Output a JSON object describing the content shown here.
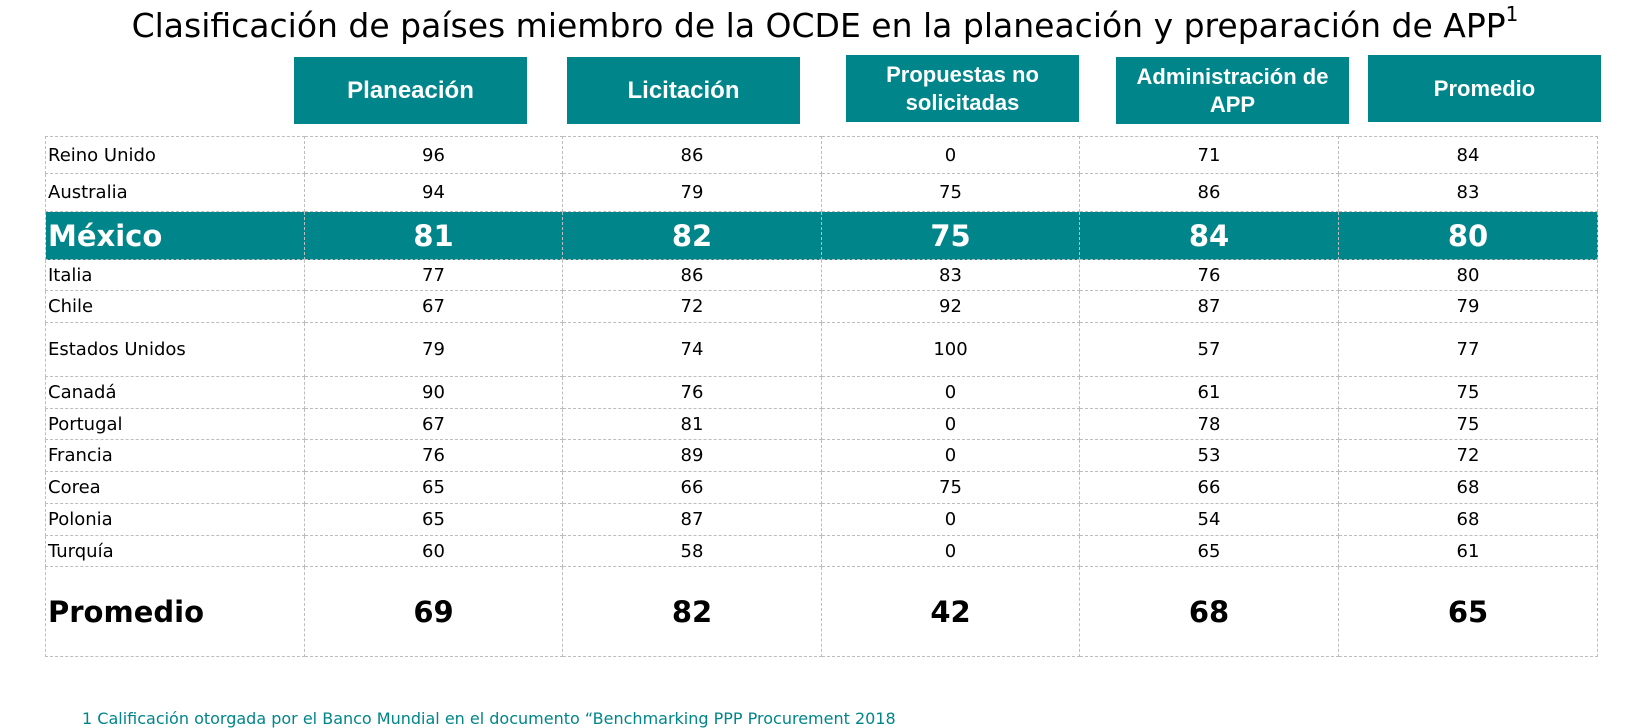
{
  "title": {
    "text": "Clasificación de países miembro de la OCDE en la planeación y preparación de APP",
    "superscript": "1"
  },
  "columns": [
    {
      "line1": "Planeación",
      "line2": ""
    },
    {
      "line1": "Licitación",
      "line2": ""
    },
    {
      "line1": "Propuestas no",
      "line2": "solicitadas"
    },
    {
      "line1": "Administración de",
      "line2": "APP"
    },
    {
      "line1": "Promedio",
      "line2": ""
    }
  ],
  "rows": [
    {
      "country": "Reino Unido",
      "values": [
        "96",
        "86",
        "0",
        "71",
        "84"
      ]
    },
    {
      "country": "Australia",
      "values": [
        "94",
        "79",
        "75",
        "86",
        "83"
      ]
    },
    {
      "country": "México",
      "values": [
        "81",
        "82",
        "75",
        "84",
        "80"
      ],
      "highlight": true
    },
    {
      "country": "Italia",
      "values": [
        "77",
        "86",
        "83",
        "76",
        "80"
      ]
    },
    {
      "country": "Chile",
      "values": [
        "67",
        "72",
        "92",
        "87",
        "79"
      ]
    },
    {
      "country": "Estados Unidos",
      "values": [
        "79",
        "74",
        "100",
        "57",
        "77"
      ]
    },
    {
      "country": "Canadá",
      "values": [
        "90",
        "76",
        "0",
        "61",
        "75"
      ]
    },
    {
      "country": "Portugal",
      "values": [
        "67",
        "81",
        "0",
        "78",
        "75"
      ]
    },
    {
      "country": "Francia",
      "values": [
        "76",
        "89",
        "0",
        "53",
        "72"
      ]
    },
    {
      "country": "Corea",
      "values": [
        "65",
        "66",
        "75",
        "66",
        "68"
      ]
    },
    {
      "country": "Polonia",
      "values": [
        "65",
        "87",
        "0",
        "54",
        "68"
      ]
    },
    {
      "country": "Turquía",
      "values": [
        "60",
        "58",
        "0",
        "65",
        "61"
      ]
    }
  ],
  "average_row": {
    "label": "Promedio",
    "values": [
      "69",
      "82",
      "42",
      "68",
      "65"
    ]
  },
  "footnote": "1 Calificación otorgada por el Banco Mundial en el documento “Benchmarking PPP Procurement 2018",
  "colors": {
    "accent": "#00858a",
    "grid": "#bdbdbd",
    "footnote": "#00858a"
  }
}
